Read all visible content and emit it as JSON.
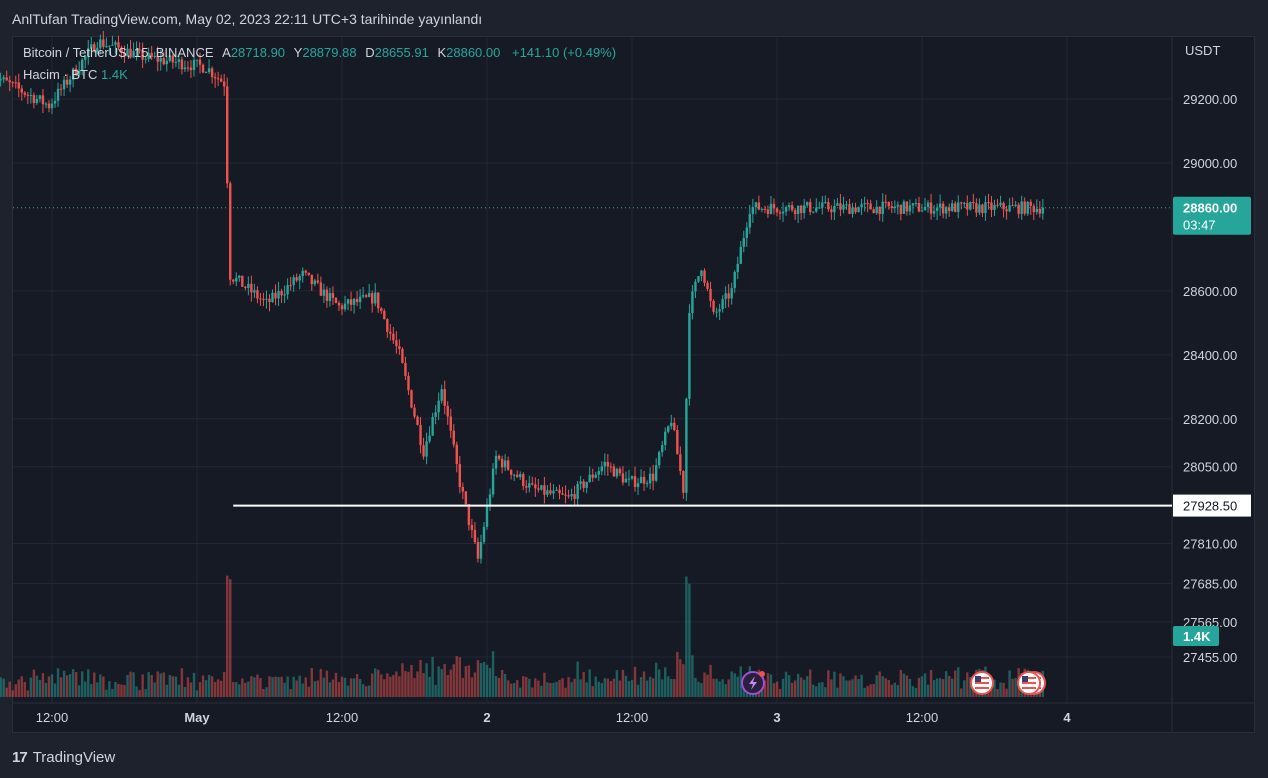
{
  "header": {
    "publish_note": "AnlTufan TradingView.com, May 02, 2023 22:11 UTC+3 tarihinde yayınlandı"
  },
  "legend": {
    "symbol": "Bitcoin / TetherUS, 15, BINANCE",
    "open_label": "A",
    "open": "28718.90",
    "high_label": "Y",
    "high": "28879.88",
    "low_label": "D",
    "low": "28655.91",
    "close_label": "K",
    "close": "28860.00",
    "change": "+141.10 (+0.49%)",
    "volume_label": "Hacim · BTC",
    "volume_value": "1.4K"
  },
  "footer": {
    "brand": "TradingView",
    "logo_text": "17"
  },
  "colors": {
    "up": "#26a69a",
    "down": "#ef5350",
    "background": "#161a25",
    "grid": "#232734",
    "text": "#d1d4dc",
    "support_line": "#ffffff"
  },
  "chart_data": {
    "type": "candlestick",
    "currency": "USDT",
    "ylim": [
      27400,
      29330
    ],
    "y_ticks": [
      "29200.00",
      "29000.00",
      "28600.00",
      "28400.00",
      "28200.00",
      "28050.00",
      "27810.00",
      "27685.00",
      "27565.00",
      "27455.00"
    ],
    "x_ticks": [
      "12:00",
      "May",
      "12:00",
      "2",
      "12:00",
      "3",
      "12:00",
      "4"
    ],
    "last_price": {
      "value": 28860.0,
      "label": "28860.00",
      "countdown": "03:47"
    },
    "horizontal_line": {
      "value": 27928.5,
      "label": "27928.50",
      "from": "May 01 03:00"
    },
    "volume_badge": "1.4K",
    "key_price_points": [
      {
        "time": "Apr 30 07:00",
        "price": 29280
      },
      {
        "time": "Apr 30 12:00",
        "price": 29180
      },
      {
        "time": "Apr 30 16:00",
        "price": 29380
      },
      {
        "time": "Apr 30 20:00",
        "price": 29330
      },
      {
        "time": "May 01 01:00",
        "price": 29300
      },
      {
        "time": "May 01 02:30",
        "price": 29250
      },
      {
        "time": "May 01 03:00",
        "price": 28650
      },
      {
        "time": "May 01 06:00",
        "price": 28560
      },
      {
        "time": "May 01 09:00",
        "price": 28650
      },
      {
        "time": "May 01 12:00",
        "price": 28550
      },
      {
        "time": "May 01 15:00",
        "price": 28580
      },
      {
        "time": "May 01 17:00",
        "price": 28400
      },
      {
        "time": "May 01 19:00",
        "price": 28100
      },
      {
        "time": "May 01 20:30",
        "price": 28300
      },
      {
        "time": "May 01 22:00",
        "price": 28000
      },
      {
        "time": "May 01 23:30",
        "price": 27760
      },
      {
        "time": "May 02 01:00",
        "price": 28080
      },
      {
        "time": "May 02 04:00",
        "price": 27980
      },
      {
        "time": "May 02 07:00",
        "price": 27950
      },
      {
        "time": "May 02 10:00",
        "price": 28060
      },
      {
        "time": "May 02 12:00",
        "price": 28000
      },
      {
        "time": "May 02 14:00",
        "price": 28020
      },
      {
        "time": "May 02 15:30",
        "price": 28200
      },
      {
        "time": "May 02 16:30",
        "price": 27980
      },
      {
        "time": "May 02 17:00",
        "price": 28550
      },
      {
        "time": "May 02 18:00",
        "price": 28680
      },
      {
        "time": "May 02 19:00",
        "price": 28520
      },
      {
        "time": "May 02 20:30",
        "price": 28600
      },
      {
        "time": "May 02 22:00",
        "price": 28860
      }
    ]
  }
}
